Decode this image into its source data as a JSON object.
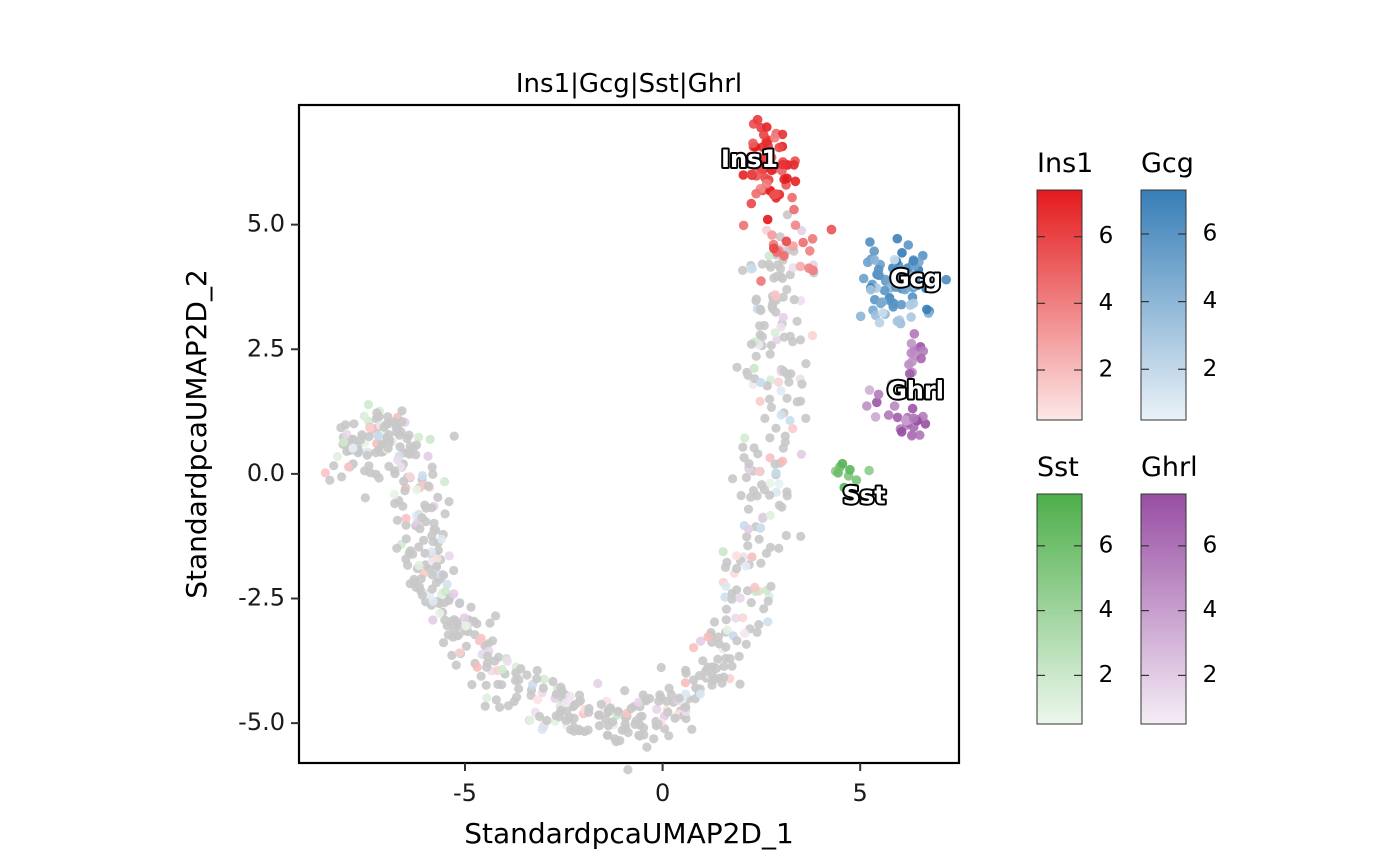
{
  "chart_data": {
    "type": "scatter",
    "title": "Ins1|Gcg|Sst|Ghrl",
    "xlabel": "StandardpcaUMAP2D_1",
    "ylabel": "StandardpcaUMAP2D_2",
    "xlim": [
      -9.2,
      7.5
    ],
    "ylim": [
      -5.8,
      7.4
    ],
    "x_ticks": [
      -5,
      0,
      5
    ],
    "x_tick_labels": [
      "-5",
      "0",
      "5"
    ],
    "y_ticks": [
      -5,
      -2.5,
      0,
      2.5,
      5
    ],
    "y_tick_labels": [
      "-5.0",
      "-2.5",
      "0.0",
      "2.5",
      "5.0"
    ],
    "grid": false,
    "legend_placement": "right",
    "background_point_color": "#c8c8c8",
    "cluster_labels": [
      {
        "text": "Ins1",
        "x": 2.2,
        "y": 6.3
      },
      {
        "text": "Gcg",
        "x": 6.4,
        "y": 3.9
      },
      {
        "text": "Ghrl",
        "x": 6.4,
        "y": 1.65
      },
      {
        "text": "Sst",
        "x": 5.1,
        "y": -0.45
      }
    ],
    "series": [
      {
        "name": "Ins1",
        "color": "#e41a1c",
        "legend_ticks": [
          2,
          4,
          6
        ],
        "legend_range": [
          0.5,
          7.4
        ],
        "clusters": [
          {
            "cx": 2.8,
            "cy": 6.1,
            "sx": 0.35,
            "sy": 0.45,
            "n": 60,
            "v": 6.2
          },
          {
            "cx": 3.4,
            "cy": 4.5,
            "sx": 0.6,
            "sy": 0.4,
            "n": 20,
            "v": 4.6
          }
        ]
      },
      {
        "name": "Gcg",
        "color": "#377eb8",
        "legend_ticks": [
          2,
          4,
          6
        ],
        "legend_range": [
          0.5,
          7.3
        ],
        "clusters": [
          {
            "cx": 6.0,
            "cy": 3.9,
            "sx": 0.45,
            "sy": 0.35,
            "n": 65,
            "v": 6.0
          },
          {
            "cx": 5.6,
            "cy": 3.3,
            "sx": 0.4,
            "sy": 0.3,
            "n": 15,
            "v": 3.2
          }
        ]
      },
      {
        "name": "Sst",
        "color": "#4daf4a",
        "legend_ticks": [
          2,
          4,
          6
        ],
        "legend_range": [
          0.5,
          7.6
        ],
        "clusters": [
          {
            "cx": 4.6,
            "cy": -0.05,
            "sx": 0.35,
            "sy": 0.2,
            "n": 9,
            "v": 5.6
          }
        ]
      },
      {
        "name": "Ghrl",
        "color": "#984ea3",
        "legend_ticks": [
          2,
          4,
          6
        ],
        "legend_range": [
          0.5,
          7.6
        ],
        "clusters": [
          {
            "cx": 6.3,
            "cy": 1.0,
            "sx": 0.2,
            "sy": 0.15,
            "n": 20,
            "v": 6.0
          },
          {
            "cx": 6.3,
            "cy": 2.4,
            "sx": 0.18,
            "sy": 0.25,
            "n": 12,
            "v": 5.5
          },
          {
            "cx": 5.6,
            "cy": 1.4,
            "sx": 0.35,
            "sy": 0.2,
            "n": 8,
            "v": 4.5
          }
        ]
      }
    ],
    "trajectory": [
      [
        -8.0,
        0.0
      ],
      [
        -7.6,
        0.6
      ],
      [
        -7.0,
        0.9
      ],
      [
        -6.4,
        0.4
      ],
      [
        -6.2,
        -0.8
      ],
      [
        -6.0,
        -1.8
      ],
      [
        -5.6,
        -2.6
      ],
      [
        -5.0,
        -3.1
      ],
      [
        -4.0,
        -4.0
      ],
      [
        -3.0,
        -4.6
      ],
      [
        -2.0,
        -4.9
      ],
      [
        -1.0,
        -5.0
      ],
      [
        0.0,
        -4.8
      ],
      [
        1.0,
        -4.2
      ],
      [
        1.8,
        -3.2
      ],
      [
        2.2,
        -2.0
      ],
      [
        2.6,
        -0.5
      ],
      [
        2.8,
        1.0
      ],
      [
        2.9,
        2.5
      ],
      [
        3.0,
        3.8
      ],
      [
        3.2,
        4.8
      ]
    ]
  }
}
